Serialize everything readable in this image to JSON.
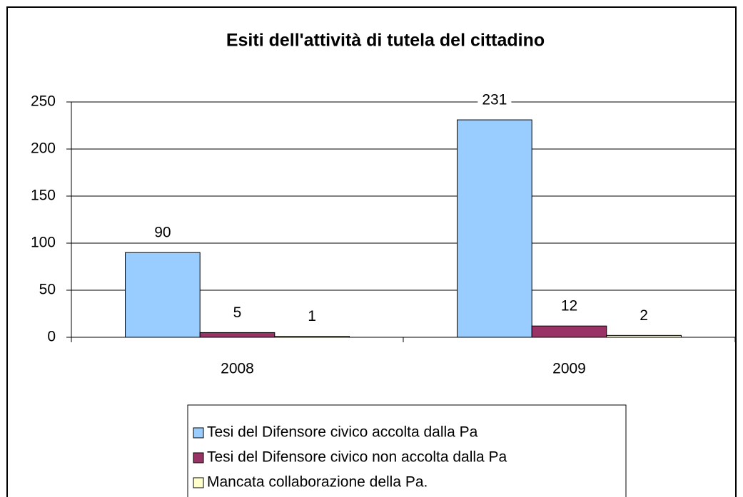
{
  "chart_data": {
    "type": "bar",
    "title": "Esiti dell'attività di tutela del cittadino",
    "categories": [
      "2008",
      "2009"
    ],
    "series": [
      {
        "name": "Tesi del Difensore civico accolta dalla Pa",
        "color": "#99ccff",
        "values": [
          90,
          231
        ]
      },
      {
        "name": "Tesi del Difensore civico non accolta dalla Pa",
        "color": "#993366",
        "values": [
          5,
          12
        ]
      },
      {
        "name": "Mancata collaborazione della Pa.",
        "color": "#ffffcc",
        "values": [
          1,
          2
        ]
      }
    ],
    "ylim": [
      0,
      250
    ],
    "yticks": [
      0,
      50,
      100,
      150,
      200,
      250
    ],
    "grid": true,
    "legend": "bottom"
  }
}
